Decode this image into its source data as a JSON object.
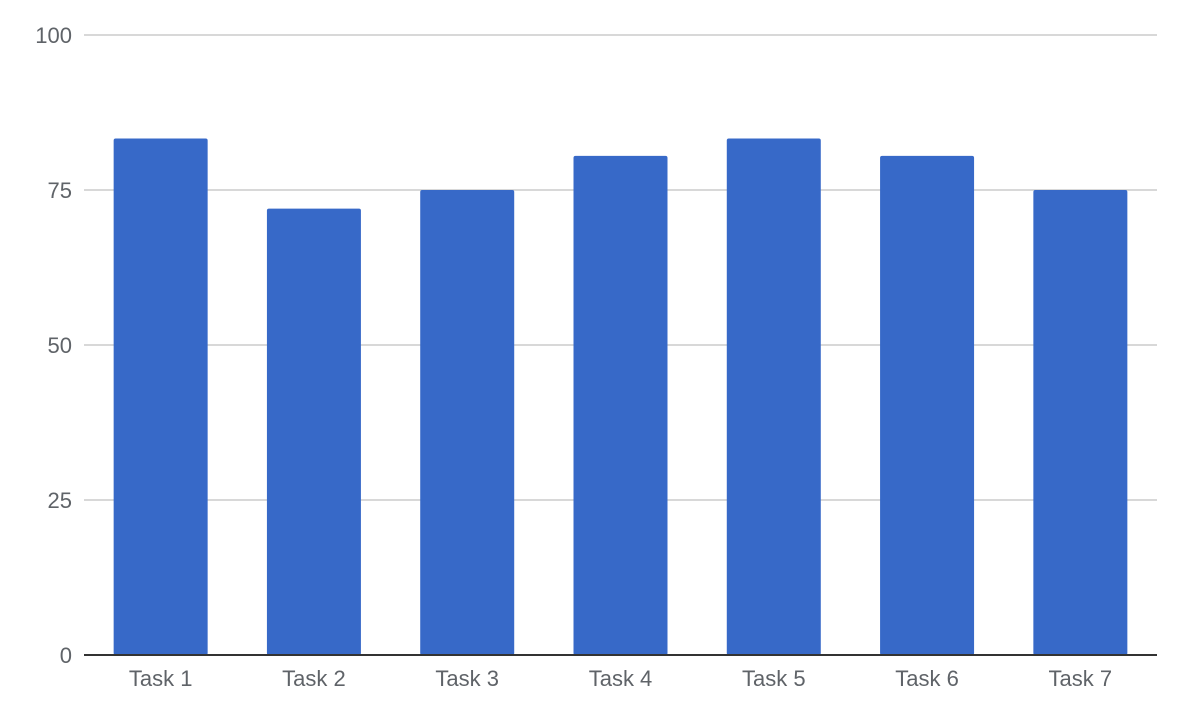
{
  "chart_data": {
    "type": "bar",
    "title": "",
    "xlabel": "",
    "ylabel": "",
    "categories": [
      "Task 1",
      "Task 2",
      "Task 3",
      "Task 4",
      "Task 5",
      "Task 6",
      "Task 7"
    ],
    "values": [
      83.3,
      72.0,
      75.0,
      80.5,
      83.3,
      80.5,
      75.0
    ],
    "ylim": [
      0,
      100
    ],
    "yticks": [
      0,
      25,
      50,
      75,
      100
    ],
    "ytick_labels": [
      "0",
      "25",
      "50",
      "75",
      "100"
    ],
    "grid": true,
    "legend": "none",
    "colors": {
      "bar": "#3769c8",
      "grid": "#cccccc",
      "baseline": "#333333",
      "text": "#5f6368"
    }
  }
}
